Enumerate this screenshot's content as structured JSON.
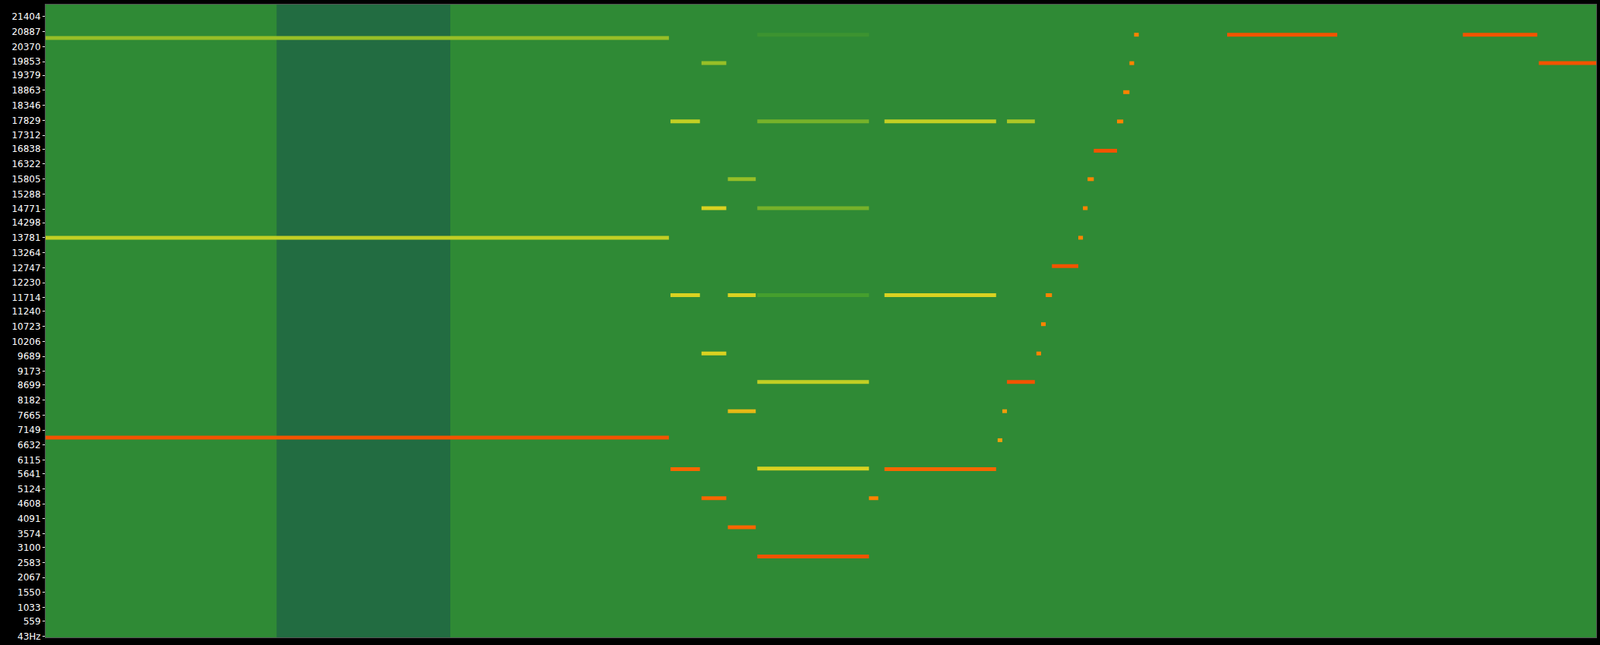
{
  "chart_data": {
    "type": "spectrogram",
    "xlim": [
      0,
      1000
    ],
    "ylim": [
      0,
      21820
    ],
    "yticks": [
      {
        "value": 43,
        "label": "43Hz"
      },
      559,
      1033,
      1550,
      2067,
      2583,
      3100,
      3574,
      4091,
      4608,
      5124,
      5641,
      6115,
      6632,
      7149,
      7665,
      8182,
      8699,
      9173,
      9689,
      10206,
      10723,
      11240,
      11714,
      12230,
      12747,
      13264,
      13781,
      14298,
      14771,
      15288,
      15805,
      16322,
      16838,
      17312,
      17829,
      18346,
      18863,
      19379,
      19853,
      20370,
      20887,
      21404
    ],
    "tick_labels": "y",
    "grid": false,
    "level_range": [
      -90,
      0
    ],
    "quiet_intervals": [
      [
        149,
        261
      ]
    ],
    "tones": [
      {
        "start": 0,
        "end": 402,
        "freq": 6890,
        "level": -12
      },
      {
        "start": 0,
        "end": 402,
        "freq": 13780,
        "level": -38
      },
      {
        "start": 0,
        "end": 402,
        "freq": 20670,
        "level": -42
      },
      {
        "start": 403,
        "end": 422,
        "freq": 5800,
        "level": -15
      },
      {
        "start": 403,
        "end": 422,
        "freq": 11800,
        "level": -35
      },
      {
        "start": 403,
        "end": 422,
        "freq": 17790,
        "level": -38
      },
      {
        "start": 423,
        "end": 439,
        "freq": 4800,
        "level": -15
      },
      {
        "start": 423,
        "end": 439,
        "freq": 9790,
        "level": -35
      },
      {
        "start": 423,
        "end": 439,
        "freq": 14800,
        "level": -35
      },
      {
        "start": 423,
        "end": 439,
        "freq": 19800,
        "level": -42
      },
      {
        "start": 440,
        "end": 458,
        "freq": 3800,
        "level": -15
      },
      {
        "start": 440,
        "end": 458,
        "freq": 7800,
        "level": -30
      },
      {
        "start": 440,
        "end": 458,
        "freq": 11800,
        "level": -35
      },
      {
        "start": 440,
        "end": 458,
        "freq": 15800,
        "level": -42
      },
      {
        "start": 459,
        "end": 531,
        "freq": 2790,
        "level": -12
      },
      {
        "start": 459,
        "end": 531,
        "freq": 5820,
        "level": -35
      },
      {
        "start": 459,
        "end": 531,
        "freq": 8810,
        "level": -38
      },
      {
        "start": 459,
        "end": 531,
        "freq": 11800,
        "level": -50
      },
      {
        "start": 459,
        "end": 531,
        "freq": 14800,
        "level": -45
      },
      {
        "start": 459,
        "end": 531,
        "freq": 17790,
        "level": -45
      },
      {
        "start": 459,
        "end": 531,
        "freq": 20780,
        "level": -58
      },
      {
        "start": 531,
        "end": 537,
        "freq": 4800,
        "level": -20
      },
      {
        "start": 541,
        "end": 613,
        "freq": 5800,
        "level": -15
      },
      {
        "start": 541,
        "end": 613,
        "freq": 11800,
        "level": -35
      },
      {
        "start": 541,
        "end": 613,
        "freq": 17790,
        "level": -38
      },
      {
        "start": 614,
        "end": 617,
        "freq": 6800,
        "level": -25
      },
      {
        "start": 617,
        "end": 620,
        "freq": 7800,
        "level": -25
      },
      {
        "start": 620,
        "end": 638,
        "freq": 8810,
        "level": -12
      },
      {
        "start": 620,
        "end": 638,
        "freq": 17790,
        "level": -40
      },
      {
        "start": 639,
        "end": 642,
        "freq": 9790,
        "level": -20
      },
      {
        "start": 642,
        "end": 645,
        "freq": 10800,
        "level": -20
      },
      {
        "start": 645,
        "end": 649,
        "freq": 11800,
        "level": -20
      },
      {
        "start": 649,
        "end": 666,
        "freq": 12800,
        "level": -12
      },
      {
        "start": 666,
        "end": 669,
        "freq": 13780,
        "level": -20
      },
      {
        "start": 669,
        "end": 672,
        "freq": 14800,
        "level": -20
      },
      {
        "start": 672,
        "end": 676,
        "freq": 15800,
        "level": -20
      },
      {
        "start": 676,
        "end": 691,
        "freq": 16780,
        "level": -12
      },
      {
        "start": 691,
        "end": 695,
        "freq": 17790,
        "level": -20
      },
      {
        "start": 695,
        "end": 699,
        "freq": 18800,
        "level": -20
      },
      {
        "start": 699,
        "end": 702,
        "freq": 19800,
        "level": -20
      },
      {
        "start": 702,
        "end": 705,
        "freq": 20780,
        "level": -20
      },
      {
        "start": 762,
        "end": 833,
        "freq": 20780,
        "level": -12
      },
      {
        "start": 914,
        "end": 962,
        "freq": 20780,
        "level": -12
      },
      {
        "start": 963,
        "end": 1000,
        "freq": 19800,
        "level": -12
      }
    ]
  }
}
